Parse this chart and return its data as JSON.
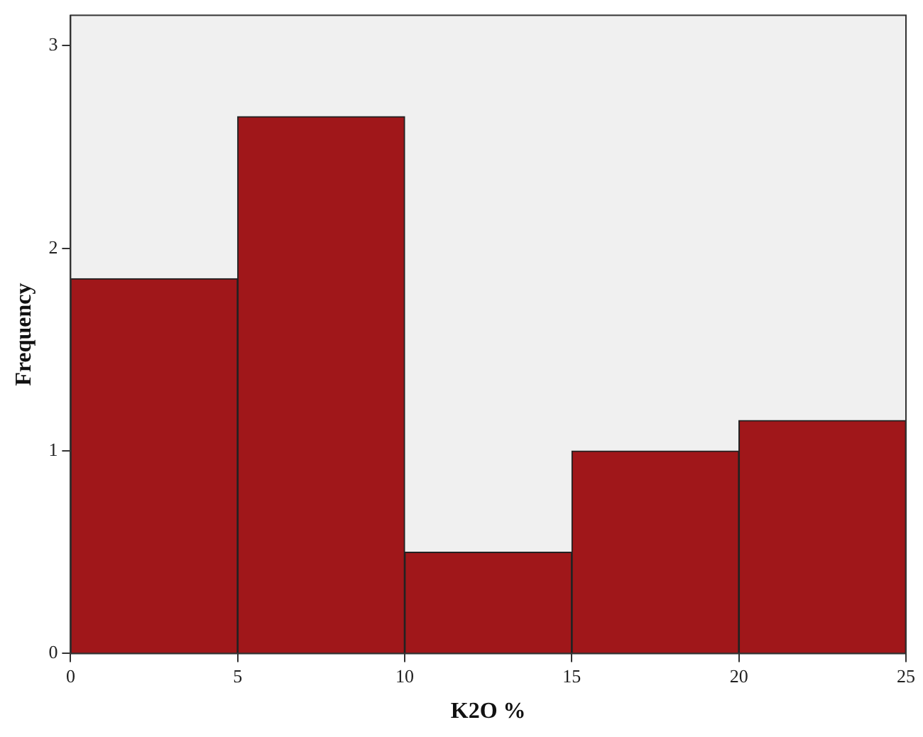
{
  "chart_data": {
    "type": "histogram",
    "xlabel": "K2O %",
    "ylabel": "Frequency",
    "bins": [
      0,
      5,
      10,
      15,
      20,
      25
    ],
    "values": [
      1.85,
      2.65,
      0.5,
      1.0,
      1.15
    ],
    "color": "#a0171a",
    "xlim": [
      0,
      25
    ],
    "xticks": [
      0,
      5,
      10,
      15,
      20,
      25
    ],
    "ylim": [
      0,
      3.15
    ],
    "yticks": [
      0,
      1,
      2,
      3
    ],
    "grid": false,
    "legend": false
  }
}
